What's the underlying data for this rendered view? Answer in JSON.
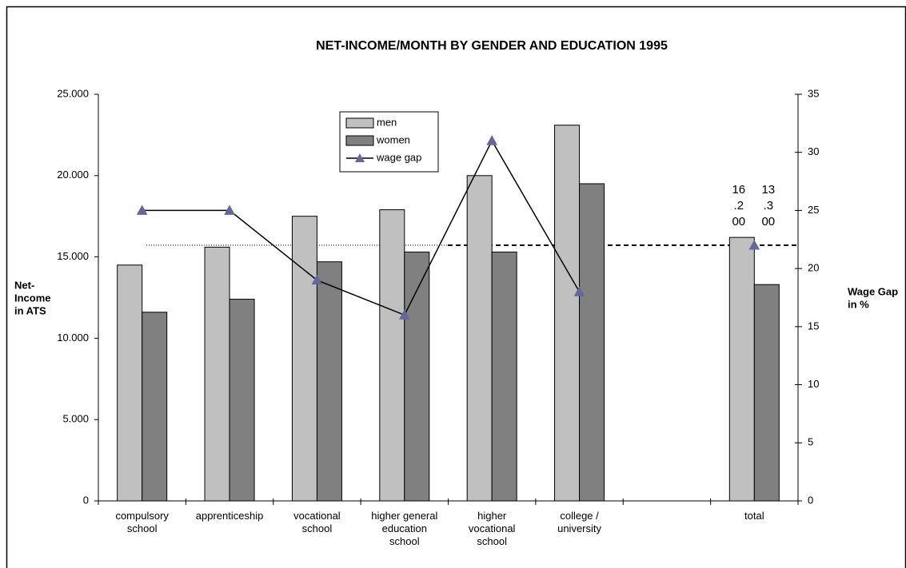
{
  "chart_data": {
    "type": "bar",
    "title": "NET-INCOME/MONTH BY GENDER AND EDUCATION 1995",
    "ylabel": [
      "Net-",
      "Income",
      "in ATS"
    ],
    "y2label": [
      "Wage Gap",
      "in %"
    ],
    "categories": [
      "compulsory school",
      "apprenticeship",
      "vocational school",
      "higher general education school",
      "higher vocational school",
      "college / university",
      null,
      "total"
    ],
    "series": [
      {
        "name": "men",
        "color": "#c0c0c0",
        "values": [
          14500,
          15600,
          17500,
          17900,
          20000,
          23100,
          null,
          16200
        ],
        "value_labels": [
          null,
          null,
          null,
          null,
          null,
          null,
          null,
          "16.200"
        ]
      },
      {
        "name": "women",
        "color": "#808080",
        "values": [
          11600,
          12400,
          14700,
          15300,
          15300,
          19500,
          null,
          13300
        ],
        "value_labels": [
          null,
          null,
          null,
          null,
          null,
          null,
          null,
          "13.300"
        ]
      },
      {
        "name": "wage gap",
        "type": "line",
        "axis": "y2",
        "color": "#000000",
        "marker_color": "#666699",
        "values": [
          25,
          25,
          19,
          16,
          31,
          18,
          null,
          22
        ]
      }
    ],
    "y2_reference": 22,
    "ylim": [
      0,
      25000
    ],
    "yticks": [
      0,
      {
        "value": 5000,
        "label": "5.000"
      },
      {
        "value": 10000,
        "label": "10.000"
      },
      {
        "value": 15000,
        "label": "15.000"
      },
      {
        "value": 20000,
        "label": "20.000"
      },
      {
        "value": 25000,
        "label": "25.000"
      }
    ],
    "y2lim": [
      0,
      35
    ],
    "y2ticks": [
      0,
      5,
      10,
      15,
      20,
      25,
      30,
      35
    ],
    "legend": "top"
  }
}
